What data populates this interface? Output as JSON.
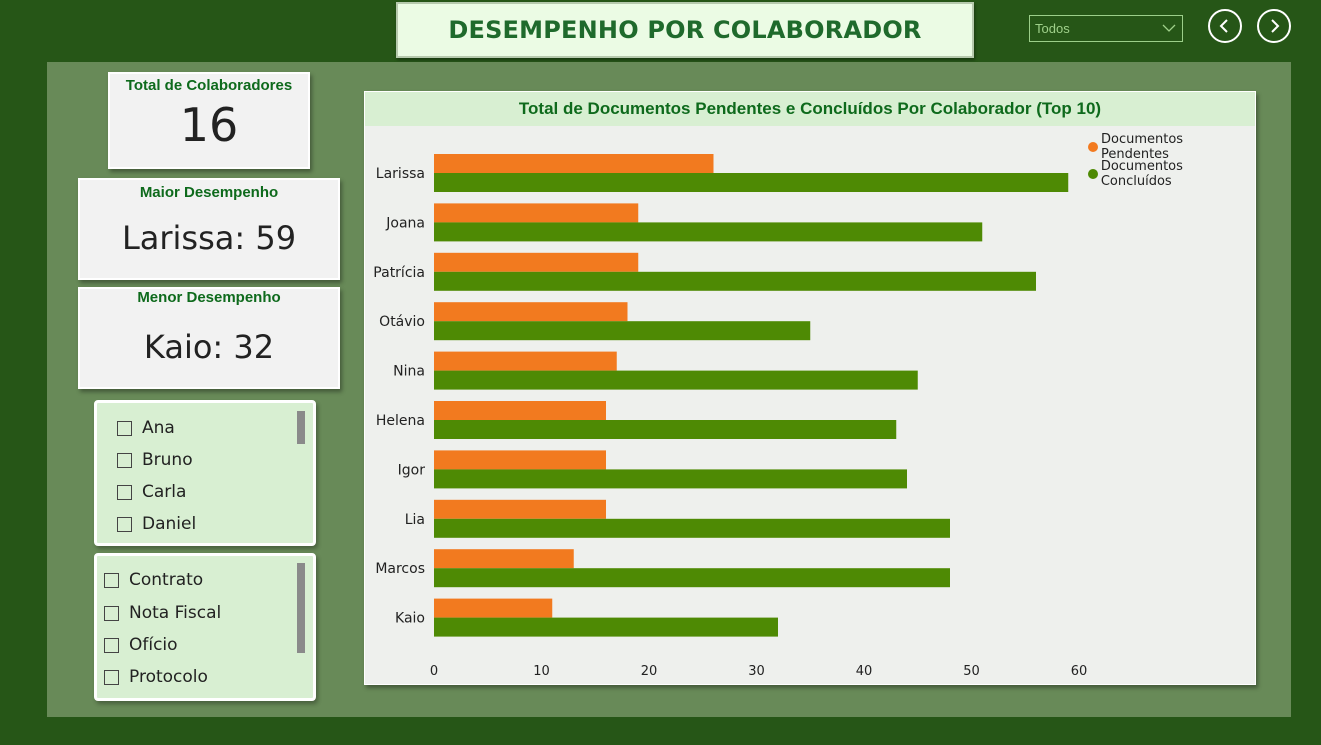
{
  "header": {
    "title": "DESEMPENHO POR COLABORADOR"
  },
  "filter": {
    "value": "Todos"
  },
  "colors": {
    "pending": "#f27a1f",
    "done": "#4e8a04"
  },
  "kpis": {
    "total": {
      "label": "Total de Colaboradores",
      "value": "16"
    },
    "best": {
      "label": "Maior Desempenho",
      "value": "Larissa: 59"
    },
    "worst": {
      "label": "Menor Desempenho",
      "value": "Kaio: 32"
    }
  },
  "slicer_people": {
    "items": [
      "Ana",
      "Bruno",
      "Carla",
      "Daniel"
    ]
  },
  "slicer_docs": {
    "items": [
      "Contrato",
      "Nota Fiscal",
      "Ofício",
      "Protocolo"
    ]
  },
  "chart_data": {
    "type": "bar",
    "orientation": "horizontal",
    "title": "Total de Documentos Pendentes e Concluídos Por Colaborador (Top 10)",
    "categories": [
      "Larissa",
      "Joana",
      "Patrícia",
      "Otávio",
      "Nina",
      "Helena",
      "Igor",
      "Lia",
      "Marcos",
      "Kaio"
    ],
    "series": [
      {
        "name": "Documentos Pendentes",
        "color": "#f27a1f",
        "values": [
          26,
          19,
          19,
          18,
          17,
          16,
          16,
          16,
          13,
          11
        ]
      },
      {
        "name": "Documentos Concluídos",
        "color": "#4e8a04",
        "values": [
          59,
          51,
          56,
          35,
          45,
          43,
          44,
          48,
          48,
          32
        ]
      }
    ],
    "xticks": [
      "0",
      "10",
      "20",
      "30",
      "40",
      "50",
      "60"
    ],
    "xlim": [
      0,
      60
    ],
    "legend": "top-right",
    "grid": false
  }
}
